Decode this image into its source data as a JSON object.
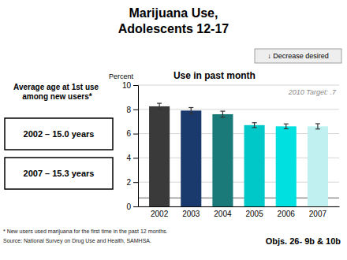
{
  "chart_data": {
    "type": "bar",
    "title": [
      "Marijuana Use,",
      "Adolescents 12-17"
    ],
    "subtitle": "Use in past month",
    "ylabel": "Percent",
    "categories": [
      "2002",
      "2003",
      "2004",
      "2005",
      "2006",
      "2007"
    ],
    "values": [
      8.25,
      7.9,
      7.6,
      6.7,
      6.6,
      6.6
    ],
    "errors": [
      0.25,
      0.25,
      0.25,
      0.2,
      0.2,
      0.22
    ],
    "colors": [
      "#3a3a3a",
      "#1a3a6e",
      "#1a7a7a",
      "#00c8c8",
      "#00e0e0",
      "#c0f0f0"
    ],
    "ylim": [
      0,
      10
    ],
    "yticks": [
      0,
      2,
      4,
      6,
      8,
      10
    ],
    "grid": true,
    "target": {
      "value": 0.7,
      "label": "2010 Target: .7",
      "color": "#999999"
    },
    "annotations": [
      "↓ Decrease desired",
      "Objs. 26- 9b & 10b"
    ],
    "side_panel": {
      "title": "Average age at 1st use among new users*",
      "boxes": [
        "2002 – 15.0 years",
        "2007 – 15.3 years"
      ]
    },
    "footnotes": [
      "* New users used marijuana for the first time in the past 12 months.",
      "Source: National Survey on Drug Use and Health, SAMHSA."
    ]
  }
}
